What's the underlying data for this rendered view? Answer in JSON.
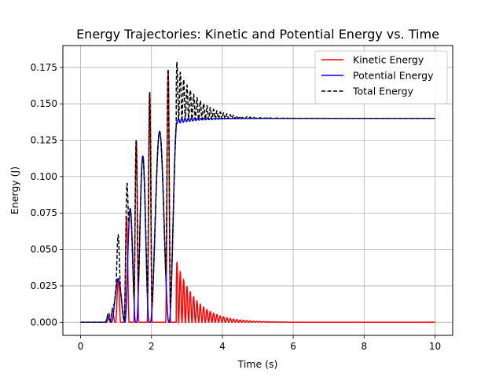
{
  "chart_data": {
    "type": "line",
    "title": "Energy Trajectories: Kinetic and Potential Energy vs. Time",
    "xlabel": "Time (s)",
    "ylabel": "Energy (J)",
    "xlim": [
      -0.5,
      10.5
    ],
    "ylim": [
      -0.009,
      0.19
    ],
    "xticks": [
      0,
      2,
      4,
      6,
      8,
      10
    ],
    "xtick_labels": [
      "0",
      "2",
      "4",
      "6",
      "8",
      "10"
    ],
    "yticks": [
      0,
      0.025,
      0.05,
      0.075,
      0.1,
      0.125,
      0.15,
      0.175
    ],
    "ytick_labels": [
      "0.000",
      "0.025",
      "0.050",
      "0.075",
      "0.100",
      "0.125",
      "0.150",
      "0.175"
    ],
    "grid": true,
    "legend_position": "top-right",
    "series": [
      {
        "name": "Kinetic Energy",
        "color": "#ff0000",
        "style": "solid",
        "description": "oscillating, growing peaks up to ~0.17 before t=2.5, then decaying fast oscillations from ~0.041 to 0 by t~6"
      },
      {
        "name": "Potential Energy",
        "color": "#0000ff",
        "style": "solid",
        "description": "oscillating humps with peaks 0.030, 0.078, 0.114, 0.131 then settling at 0.140 after t~2.8"
      },
      {
        "name": "Total Energy",
        "color": "#000000",
        "style": "dashed",
        "description": "sum of both; spikes up to ~0.18 at t~2.75 then converges to 0.140"
      }
    ],
    "kinetic_pre_peaks": [
      {
        "t": 1.3,
        "peak": 0.072
      },
      {
        "t": 1.57,
        "peak": 0.125
      },
      {
        "t": 1.95,
        "peak": 0.158
      },
      {
        "t": 2.47,
        "peak": 0.172
      }
    ],
    "potential_humps": [
      {
        "start": 0.7,
        "end": 0.85,
        "peak": 0.004
      },
      {
        "start": 0.87,
        "end": 1.25,
        "peak": 0.03
      },
      {
        "start": 1.25,
        "end": 1.55,
        "peak": 0.078
      },
      {
        "start": 1.58,
        "end": 1.93,
        "peak": 0.114
      },
      {
        "start": 1.97,
        "end": 2.49,
        "peak": 0.131
      }
    ],
    "steady_state_total": 0.14,
    "kinetic_decay_start": {
      "t": 2.72,
      "value": 0.041
    },
    "total_spike_max": 0.181
  }
}
